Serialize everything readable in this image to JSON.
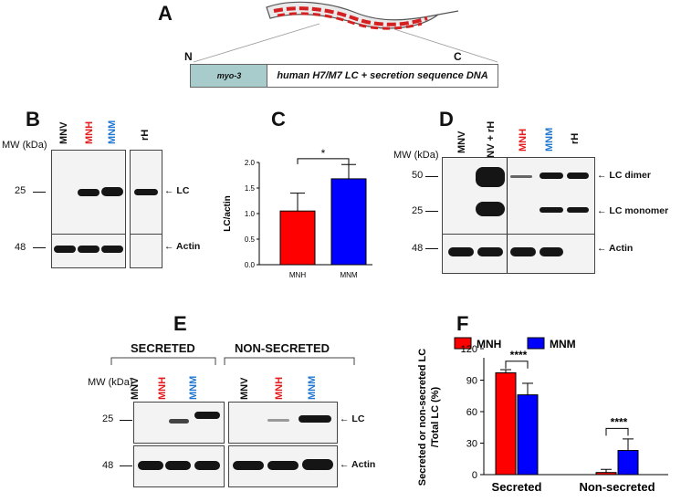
{
  "panels": {
    "A": "A",
    "B": "B",
    "C": "C",
    "D": "D",
    "E": "E",
    "F": "F"
  },
  "panel_a": {
    "n_label": "N",
    "c_label": "C",
    "promoter": "myo-3",
    "construct": "human H7/M7 LC + secretion sequence DNA"
  },
  "panel_b": {
    "mw_header": "MW (kDa)",
    "lanes": [
      "MNV",
      "MNH",
      "MNM",
      "rH"
    ],
    "lane_colors": [
      "#111111",
      "#e41a1c",
      "#1f77d0",
      "#111111"
    ],
    "mw_top": "25",
    "mw_bottom": "48",
    "label_top": "LC",
    "label_bottom": "Actin"
  },
  "chart_data": {
    "type": "bar",
    "title": "C",
    "categories": [
      "MNH",
      "MNM"
    ],
    "values": [
      1.05,
      1.68
    ],
    "errors": [
      0.35,
      0.28
    ],
    "colors": [
      "#ff0000",
      "#0000ff"
    ],
    "ylabel": "LC/actin",
    "xlabel": "",
    "ylim": [
      0,
      2.0
    ],
    "yticks": [
      "0.0",
      "0.5",
      "1.0",
      "1.5",
      "2.0"
    ],
    "significance": "*"
  },
  "panel_d": {
    "mw_header": "MW (kDa)",
    "lanes": [
      "MNV",
      "MNV + rH",
      "MNH",
      "MNM",
      "rH"
    ],
    "lane_colors": [
      "#111111",
      "#111111",
      "#e41a1c",
      "#1f77d0",
      "#111111"
    ],
    "mw_50": "50",
    "mw_25": "25",
    "mw_48": "48",
    "label_dimer": "LC dimer",
    "label_monomer": "LC monomer",
    "label_actin": "Actin"
  },
  "panel_e": {
    "group_secreted": "SECRETED",
    "group_nonsecreted": "NON-SECRETED",
    "mw_header": "MW (kDa)",
    "lanes": [
      "MNV",
      "MNH",
      "MNM",
      "MNV",
      "MNH",
      "MNM"
    ],
    "lane_colors": [
      "#111111",
      "#e41a1c",
      "#1f77d0",
      "#111111",
      "#e41a1c",
      "#1f77d0"
    ],
    "mw_25": "25",
    "mw_48": "48",
    "label_lc": "LC",
    "label_actin": "Actin"
  },
  "panel_f": {
    "type": "bar",
    "ylabel_line1": "Secreted or non-secreted LC",
    "ylabel_line2": "/Total LC (%)",
    "categories": [
      "Secreted",
      "Non-secreted"
    ],
    "series": [
      {
        "name": "MNH",
        "color": "#ff0000",
        "values": [
          97,
          2
        ],
        "errors": [
          3,
          3
        ]
      },
      {
        "name": "MNM",
        "color": "#0000ff",
        "values": [
          76,
          23
        ],
        "errors": [
          11,
          11
        ]
      }
    ],
    "ylim": [
      0,
      120
    ],
    "yticks": [
      "0",
      "30",
      "60",
      "90",
      "120"
    ],
    "significance": [
      "****",
      "****"
    ]
  }
}
